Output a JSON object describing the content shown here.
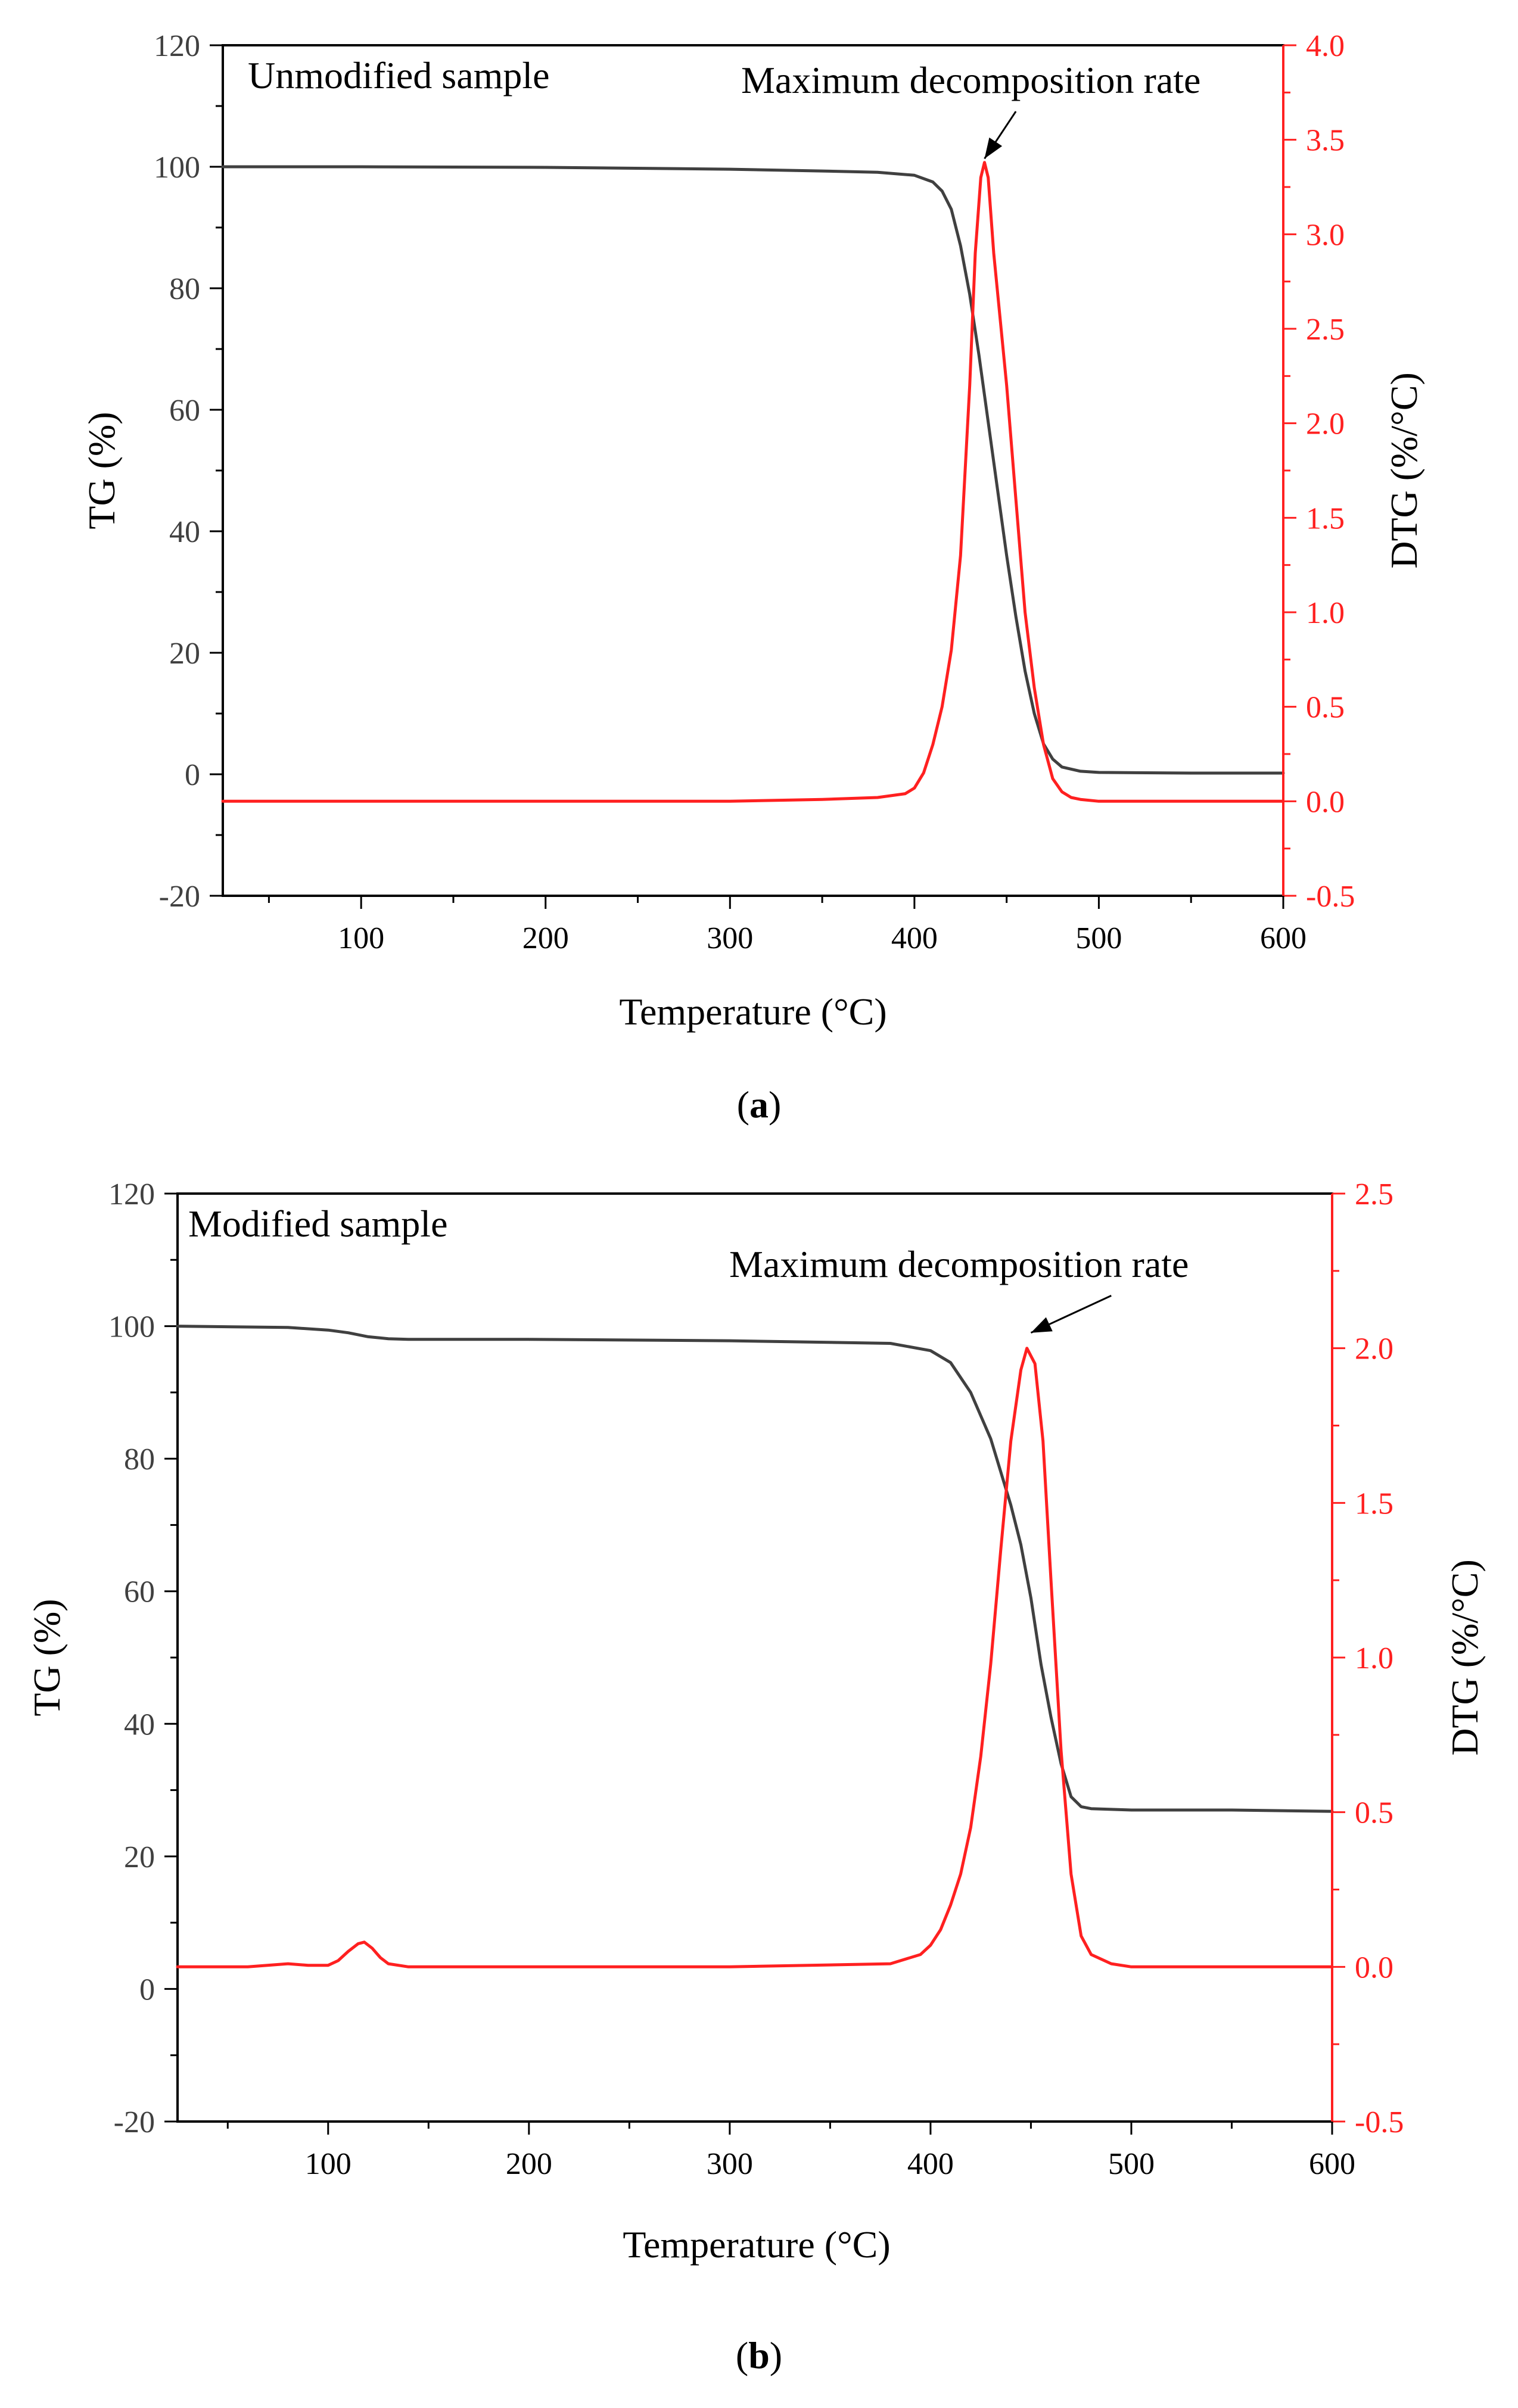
{
  "colors": {
    "tg_line": "#404040",
    "dtg_line": "#ff2020",
    "left_axis": "#000000",
    "right_axis": "#ff2020",
    "tick_text_left": "#404040",
    "tick_text_right": "#ff2020"
  },
  "chart_data": [
    {
      "id": "a",
      "type": "line",
      "panel_label": "Unmodified sample",
      "annotation": "Maximum decomposition rate",
      "caption_open": "(",
      "caption_letter": "a",
      "caption_close": ")",
      "xlabel": "Temperature (°C)",
      "ylabel": "TG (%)",
      "y2label": "DTG (%/°C)",
      "xlim": [
        25,
        600
      ],
      "ylim": [
        -20,
        120
      ],
      "y2lim": [
        -0.5,
        4.0
      ],
      "xticks": [
        100,
        200,
        300,
        400,
        500,
        600
      ],
      "yticks": [
        -20,
        0,
        20,
        40,
        60,
        80,
        100,
        120
      ],
      "y2ticks": [
        -0.5,
        0.0,
        0.5,
        1.0,
        1.5,
        2.0,
        2.5,
        3.0,
        3.5,
        4.0
      ],
      "xtick_labels": [
        "100",
        "200",
        "300",
        "400",
        "500",
        "600"
      ],
      "ytick_labels": [
        "-20",
        "0",
        "20",
        "40",
        "60",
        "80",
        "100",
        "120"
      ],
      "y2tick_labels": [
        "-0.5",
        "0.0",
        "0.5",
        "1.0",
        "1.5",
        "2.0",
        "2.5",
        "3.0",
        "3.5",
        "4.0"
      ],
      "arrow_from": [
        455,
        3.65
      ],
      "arrow_to": [
        438,
        3.4
      ],
      "series": [
        {
          "name": "TG",
          "axis": "left",
          "x": [
            25,
            100,
            200,
            300,
            350,
            380,
            400,
            410,
            415,
            420,
            425,
            430,
            435,
            440,
            445,
            450,
            455,
            460,
            465,
            470,
            475,
            480,
            490,
            500,
            550,
            600
          ],
          "y": [
            100,
            100,
            99.9,
            99.6,
            99.3,
            99.1,
            98.6,
            97.5,
            96,
            93,
            87,
            79,
            69,
            58,
            47,
            36,
            26,
            17,
            10,
            5,
            2.5,
            1.2,
            0.5,
            0.3,
            0.2,
            0.2
          ]
        },
        {
          "name": "DTG",
          "axis": "right",
          "x": [
            25,
            300,
            350,
            380,
            395,
            400,
            405,
            410,
            415,
            420,
            425,
            430,
            433,
            436,
            438,
            440,
            443,
            447,
            450,
            455,
            460,
            465,
            470,
            475,
            480,
            485,
            490,
            500,
            600
          ],
          "y": [
            0,
            0,
            0.01,
            0.02,
            0.04,
            0.07,
            0.15,
            0.3,
            0.5,
            0.8,
            1.3,
            2.2,
            2.9,
            3.3,
            3.38,
            3.3,
            2.9,
            2.5,
            2.2,
            1.6,
            1.0,
            0.6,
            0.3,
            0.12,
            0.05,
            0.02,
            0.01,
            0,
            0
          ]
        }
      ]
    },
    {
      "id": "b",
      "type": "line",
      "panel_label": "Modified sample",
      "annotation": "Maximum decomposition rate",
      "caption_open": "(",
      "caption_letter": "b",
      "caption_close": ")",
      "xlabel": "Temperature (°C)",
      "ylabel": "TG (%)",
      "y2label": "DTG (%/°C)",
      "xlim": [
        25,
        600
      ],
      "ylim": [
        -20,
        120
      ],
      "y2lim": [
        -0.5,
        2.5
      ],
      "xticks": [
        100,
        200,
        300,
        400,
        500,
        600
      ],
      "yticks": [
        -20,
        0,
        20,
        40,
        60,
        80,
        100,
        120
      ],
      "y2ticks": [
        -0.5,
        0.0,
        0.5,
        1.0,
        1.5,
        2.0,
        2.5
      ],
      "xtick_labels": [
        "100",
        "200",
        "300",
        "400",
        "500",
        "600"
      ],
      "ytick_labels": [
        "-20",
        "0",
        "20",
        "40",
        "60",
        "80",
        "100",
        "120"
      ],
      "y2tick_labels": [
        "-0.5",
        "0.0",
        "0.5",
        "1.0",
        "1.5",
        "2.0",
        "2.5"
      ],
      "arrow_from": [
        490,
        2.17
      ],
      "arrow_to": [
        450,
        2.05
      ],
      "series": [
        {
          "name": "TG",
          "axis": "left",
          "x": [
            25,
            80,
            100,
            110,
            120,
            130,
            140,
            200,
            300,
            380,
            400,
            410,
            420,
            430,
            440,
            445,
            450,
            455,
            460,
            465,
            470,
            475,
            480,
            500,
            550,
            600
          ],
          "y": [
            100,
            99.8,
            99.4,
            99,
            98.4,
            98.1,
            98,
            98,
            97.8,
            97.4,
            96.3,
            94.5,
            90,
            83,
            73,
            67,
            59,
            49,
            41,
            34,
            29,
            27.5,
            27.2,
            27,
            27,
            26.8
          ]
        },
        {
          "name": "DTG",
          "axis": "right",
          "x": [
            25,
            60,
            80,
            90,
            100,
            105,
            110,
            115,
            118,
            122,
            126,
            130,
            140,
            200,
            300,
            380,
            395,
            400,
            405,
            410,
            415,
            420,
            425,
            430,
            435,
            440,
            445,
            448,
            452,
            456,
            460,
            465,
            470,
            475,
            480,
            490,
            500,
            600
          ],
          "y": [
            0,
            0,
            0.01,
            0.005,
            0.005,
            0.02,
            0.05,
            0.075,
            0.08,
            0.06,
            0.03,
            0.01,
            0,
            0,
            0,
            0.01,
            0.04,
            0.07,
            0.12,
            0.2,
            0.3,
            0.45,
            0.68,
            0.98,
            1.35,
            1.7,
            1.93,
            2.0,
            1.95,
            1.7,
            1.25,
            0.7,
            0.3,
            0.1,
            0.04,
            0.01,
            0,
            0
          ]
        }
      ]
    }
  ]
}
